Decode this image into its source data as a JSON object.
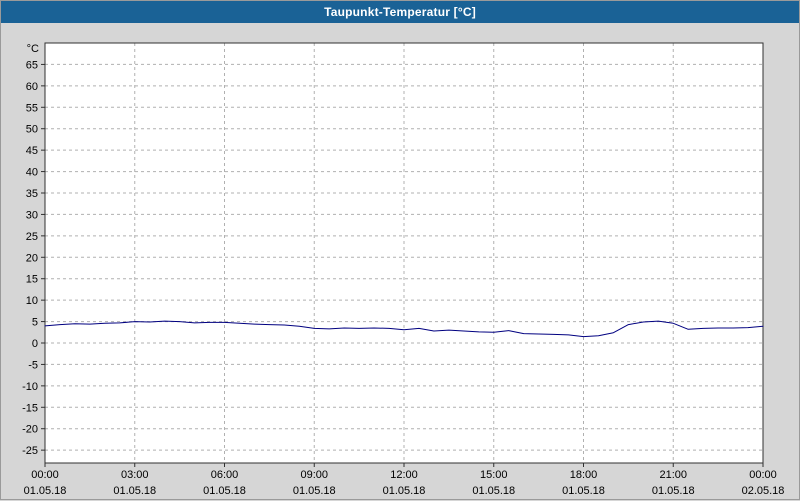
{
  "window": {
    "title": "Taupunkt-Temperatur [°C]"
  },
  "colors": {
    "titlebar": "#1a6296",
    "window_bg": "#d6d6d6",
    "plot_bg": "#ffffff",
    "plot_border": "#303030",
    "grid": "#b0b0b0",
    "tick": "#303030",
    "label": "#000000",
    "line": "#000080"
  },
  "chart_data": {
    "type": "line",
    "title": "Taupunkt-Temperatur [°C]",
    "ylabel": "°C",
    "series_name": "Taupunkt",
    "line_color": "#000080",
    "grid": true,
    "legend_position": "none",
    "ylim": [
      -28,
      70
    ],
    "yticks": [
      -25,
      -20,
      -15,
      -10,
      -5,
      0,
      5,
      10,
      15,
      20,
      25,
      30,
      35,
      40,
      45,
      50,
      55,
      60,
      65
    ],
    "xlim": [
      0,
      24
    ],
    "xticks": [
      0,
      3,
      6,
      9,
      12,
      15,
      18,
      21,
      24
    ],
    "xtick_labels": [
      "00:00",
      "03:00",
      "06:00",
      "09:00",
      "12:00",
      "15:00",
      "18:00",
      "21:00",
      "00:00"
    ],
    "xtick_dates": [
      "01.05.18",
      "01.05.18",
      "01.05.18",
      "01.05.18",
      "01.05.18",
      "01.05.18",
      "01.05.18",
      "01.05.18",
      "02.05.18"
    ],
    "x": [
      0,
      0.5,
      1,
      1.5,
      2,
      2.5,
      3,
      3.5,
      4,
      4.5,
      5,
      5.5,
      6,
      6.5,
      7,
      7.5,
      8,
      8.5,
      9,
      9.5,
      10,
      10.5,
      11,
      11.5,
      12,
      12.5,
      13,
      13.5,
      14,
      14.5,
      15,
      15.5,
      16,
      16.5,
      17,
      17.5,
      18,
      18.5,
      19,
      19.5,
      20,
      20.5,
      21,
      21.5,
      22,
      22.5,
      23,
      23.5,
      24
    ],
    "values": [
      4.0,
      4.3,
      4.5,
      4.4,
      4.6,
      4.7,
      5.0,
      4.9,
      5.1,
      5.0,
      4.7,
      4.8,
      4.8,
      4.6,
      4.4,
      4.3,
      4.2,
      3.9,
      3.4,
      3.3,
      3.5,
      3.4,
      3.5,
      3.4,
      3.1,
      3.4,
      2.8,
      3.0,
      2.8,
      2.6,
      2.5,
      2.9,
      2.2,
      2.1,
      2.0,
      1.9,
      1.5,
      1.7,
      2.4,
      4.3,
      4.9,
      5.1,
      4.6,
      3.2,
      3.4,
      3.5,
      3.5,
      3.6,
      3.9
    ]
  }
}
